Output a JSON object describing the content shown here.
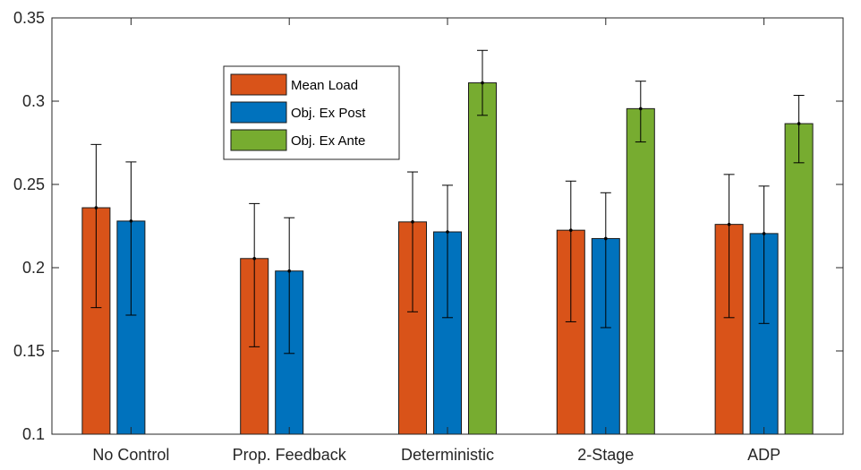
{
  "chart_data": {
    "type": "bar",
    "title": "",
    "xlabel": "",
    "ylabel": "",
    "categories": [
      "No Control",
      "Prop. Feedback",
      "Deterministic",
      "2-Stage",
      "ADP"
    ],
    "ylim": [
      0.1,
      0.35
    ],
    "yticks": [
      0.1,
      0.15,
      0.2,
      0.25,
      0.3,
      0.35
    ],
    "ytick_labels": [
      "0.1",
      "0.15",
      "0.2",
      "0.25",
      "0.3",
      "0.35"
    ],
    "grid": false,
    "legend_position": "top-left-inside",
    "series": [
      {
        "name": "Mean Load",
        "color": "#D95319",
        "values": [
          0.236,
          0.2055,
          0.2275,
          0.2225,
          0.226
        ],
        "err_low": [
          0.176,
          0.1525,
          0.1735,
          0.1675,
          0.17
        ],
        "err_high": [
          0.274,
          0.2385,
          0.2575,
          0.252,
          0.256
        ]
      },
      {
        "name": "Obj. Ex Post",
        "color": "#0072BD",
        "values": [
          0.228,
          0.198,
          0.2215,
          0.2175,
          0.2205
        ],
        "err_low": [
          0.1715,
          0.1485,
          0.17,
          0.164,
          0.1665
        ],
        "err_high": [
          0.2635,
          0.23,
          0.2495,
          0.245,
          0.249
        ]
      },
      {
        "name": "Obj. Ex Ante",
        "color": "#77AC30",
        "values": [
          null,
          null,
          0.311,
          0.2955,
          0.2865
        ],
        "err_low": [
          null,
          null,
          0.2915,
          0.2755,
          0.263
        ],
        "err_high": [
          null,
          null,
          0.3305,
          0.312,
          0.3035
        ]
      }
    ]
  }
}
